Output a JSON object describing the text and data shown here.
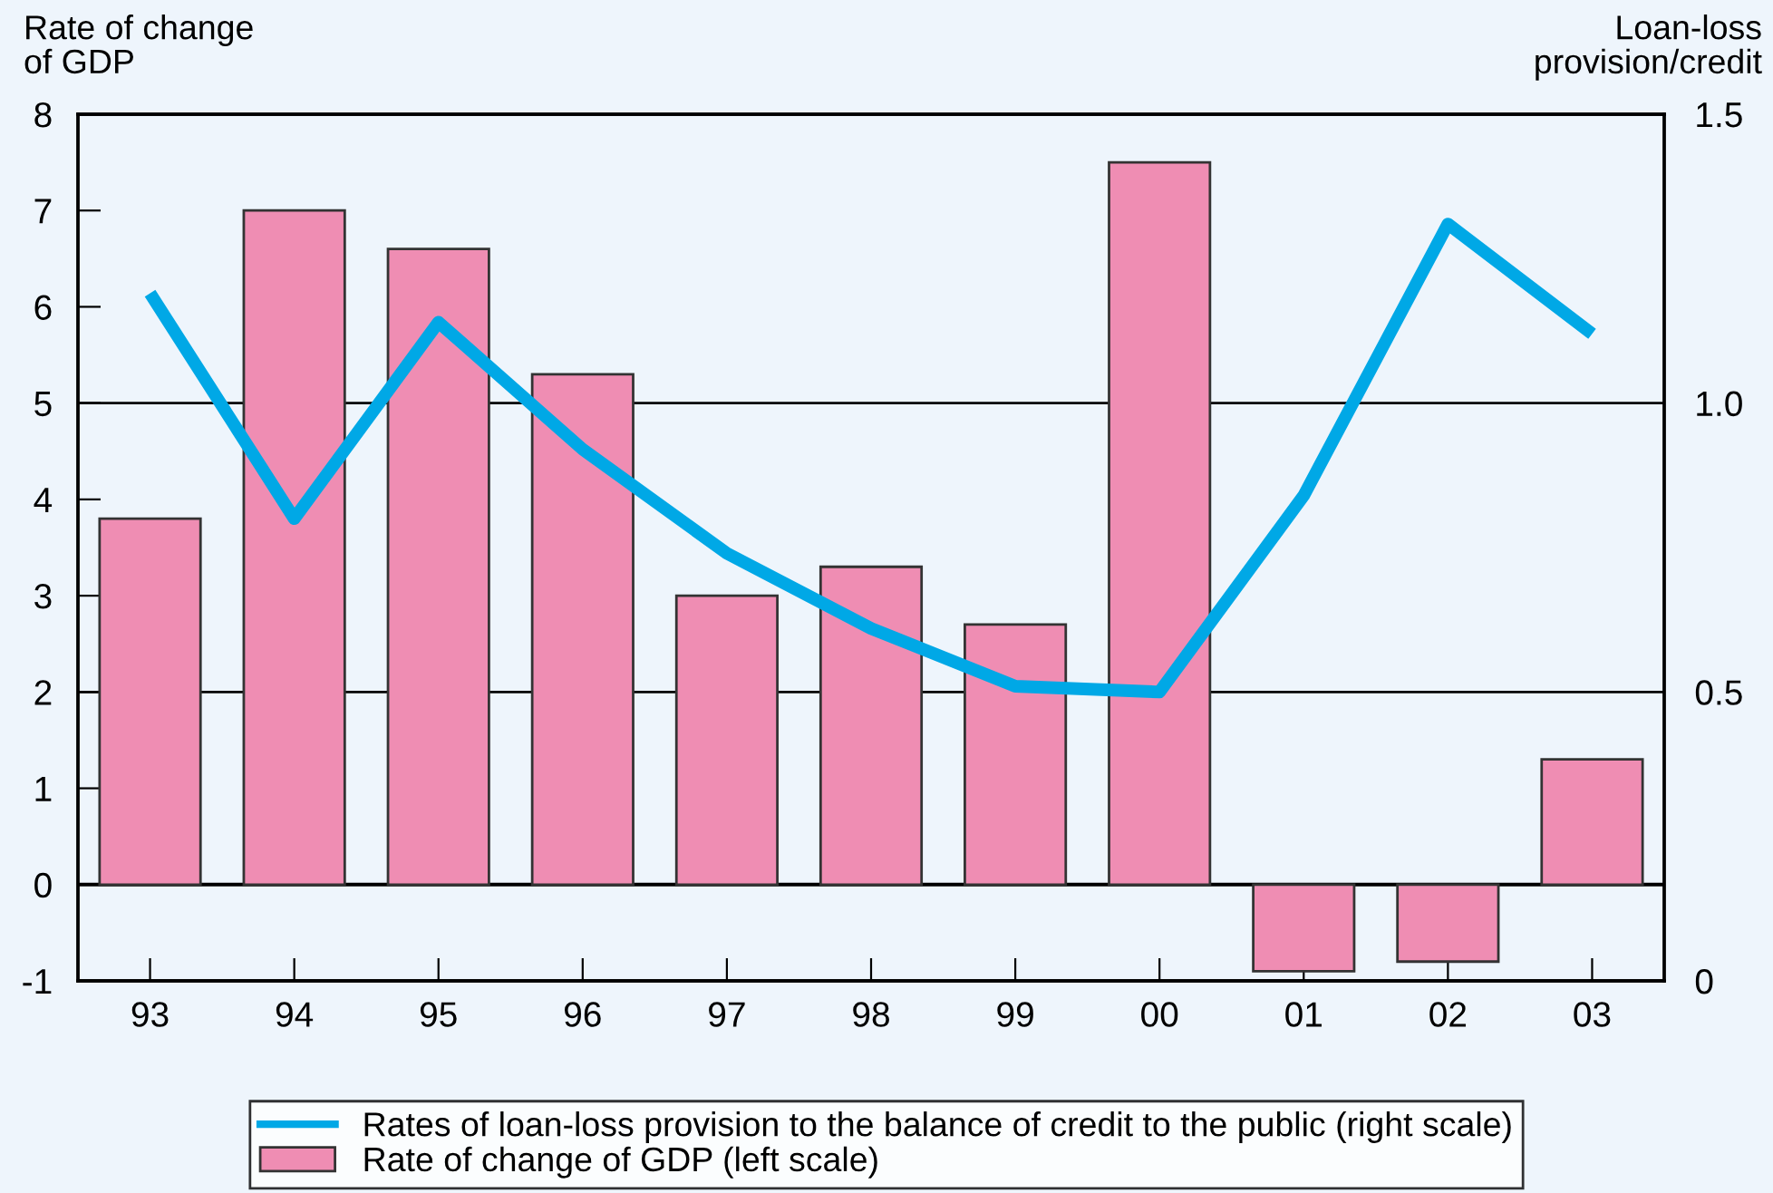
{
  "chart_data": {
    "type": "bar",
    "ylabel": "Rate of change\nof GDP",
    "y2label": "Loan-loss\nprovision/credit",
    "categories": [
      "93",
      "94",
      "95",
      "96",
      "97",
      "98",
      "99",
      "00",
      "01",
      "02",
      "03"
    ],
    "series": [
      {
        "name": "Rates of loan-loss provision to the balance of credit to the public (right scale)",
        "type": "line",
        "axis": "y2",
        "color": "#00a8e6",
        "values": [
          1.19,
          0.8,
          1.14,
          0.92,
          0.74,
          0.61,
          0.51,
          0.5,
          0.84,
          1.31,
          1.12
        ]
      },
      {
        "name": "Rate of change of GDP (left scale)",
        "color": "#ef8db3",
        "values": [
          3.8,
          7.0,
          6.6,
          5.3,
          3.0,
          3.3,
          2.7,
          7.5,
          -0.9,
          -0.8,
          1.3
        ]
      }
    ],
    "ylim": [
      -1,
      8
    ],
    "yticks": [
      -1,
      0,
      1,
      2,
      3,
      4,
      5,
      6,
      7,
      8
    ],
    "y2lim": [
      0,
      1.5
    ],
    "y2ticks": [
      0,
      {
        "value": 0.5,
        "label": "0.5"
      },
      {
        "value": 1.0,
        "label": "1.0"
      },
      {
        "value": 1.5,
        "label": "1.5"
      }
    ],
    "ref_lines": [
      {
        "axis": "y",
        "value": 0,
        "color": "#000000"
      }
    ],
    "grid": "y2",
    "legend": "bottom"
  }
}
